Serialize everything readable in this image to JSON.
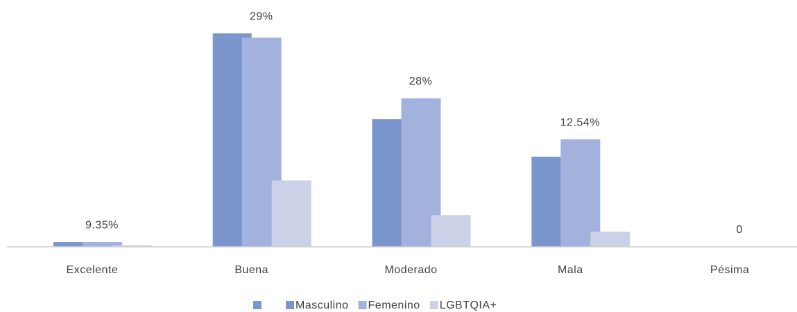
{
  "chart_data": {
    "type": "bar",
    "categories": [
      "Excelente",
      "Buena",
      "Moderado",
      "Mala",
      "Pésima"
    ],
    "series": [
      {
        "name": "Masculino",
        "color": "#7a96cc",
        "values": [
          0.67,
          29.6,
          17.7,
          12.5,
          0
        ]
      },
      {
        "name": "Femenino",
        "color": "#a2b2dc",
        "values": [
          0.67,
          29,
          20.6,
          14.9,
          0
        ]
      },
      {
        "name": "LGBTQIA+",
        "color": "#cbd2e8",
        "values": [
          0.2,
          9.2,
          4.4,
          2.1,
          0
        ]
      }
    ],
    "labels": [
      "9.35%",
      "29%",
      "28%",
      "12.54%",
      "0"
    ],
    "ylim": [
      0,
      30
    ]
  }
}
